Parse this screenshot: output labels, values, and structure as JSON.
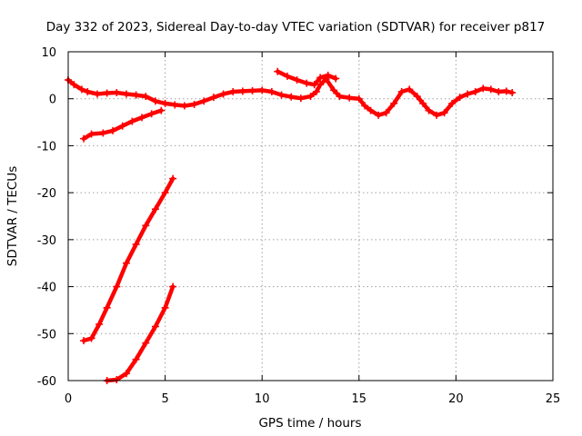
{
  "chart_data": {
    "type": "scatter",
    "title": "Day 332 of 2023, Sidereal Day-to-day VTEC variation (SDTVAR) for receiver p817",
    "xlabel": "GPS time / hours",
    "ylabel": "SDTVAR / TECUs",
    "xlim": [
      0,
      25
    ],
    "ylim": [
      -60,
      10
    ],
    "xticks": [
      0,
      5,
      10,
      15,
      20,
      25
    ],
    "yticks": [
      10,
      0,
      -10,
      -20,
      -30,
      -40,
      -50,
      -60
    ],
    "grid": true,
    "color": "#ff0000",
    "series": [
      {
        "name": "main-track",
        "x": [
          0.0,
          0.3,
          0.7,
          1.0,
          1.5,
          2.0,
          2.5,
          3.0,
          3.5,
          4.0,
          4.5,
          5.0,
          5.5,
          6.0,
          6.5,
          7.0,
          7.5,
          8.0,
          8.5,
          9.0,
          9.5,
          10.0,
          10.5,
          11.0,
          11.5,
          12.0,
          12.5,
          12.8,
          13.0,
          13.3,
          13.7,
          14.0,
          14.5,
          15.0,
          15.3,
          15.6,
          16.0,
          16.4,
          16.8,
          17.2,
          17.6,
          18.0,
          18.3,
          18.6,
          19.0,
          19.4,
          19.8,
          20.2,
          20.6,
          21.0,
          21.4,
          21.8,
          22.2,
          22.6,
          22.9
        ],
        "y": [
          4.0,
          3.0,
          2.0,
          1.5,
          1.0,
          1.2,
          1.3,
          1.0,
          0.8,
          0.5,
          -0.5,
          -1.0,
          -1.3,
          -1.5,
          -1.2,
          -0.5,
          0.3,
          1.0,
          1.5,
          1.6,
          1.7,
          1.8,
          1.5,
          0.8,
          0.4,
          0.1,
          0.5,
          1.5,
          3.0,
          4.2,
          1.8,
          0.5,
          0.2,
          0.0,
          -1.5,
          -2.5,
          -3.5,
          -3.0,
          -1.0,
          1.5,
          2.0,
          0.5,
          -1.0,
          -2.5,
          -3.5,
          -3.0,
          -1.0,
          0.3,
          1.0,
          1.5,
          2.2,
          2.0,
          1.5,
          1.6,
          1.3
        ]
      },
      {
        "name": "upper-segment",
        "x": [
          10.8,
          11.3,
          11.8,
          12.3,
          12.7,
          13.0,
          13.4,
          13.8
        ],
        "y": [
          5.8,
          4.8,
          4.0,
          3.3,
          3.0,
          4.5,
          5.0,
          4.3
        ]
      },
      {
        "name": "decline-segment",
        "x": [
          0.8,
          1.2,
          1.8,
          2.3,
          2.8,
          3.3,
          3.8,
          4.3,
          4.8
        ],
        "y": [
          -8.5,
          -7.5,
          -7.3,
          -6.8,
          -5.8,
          -4.8,
          -4.0,
          -3.2,
          -2.5
        ]
      },
      {
        "name": "steep-rise-1",
        "x": [
          0.8,
          1.2,
          1.6,
          2.0,
          2.5,
          3.0,
          3.5,
          4.0,
          4.5,
          5.0,
          5.4
        ],
        "y": [
          -51.5,
          -51.0,
          -48.0,
          -44.5,
          -40.0,
          -35.0,
          -31.0,
          -27.0,
          -23.5,
          -20.0,
          -17.0
        ]
      },
      {
        "name": "steep-rise-2",
        "x": [
          2.0,
          2.5,
          3.0,
          3.5,
          4.0,
          4.5,
          5.0,
          5.4
        ],
        "y": [
          -60.0,
          -59.8,
          -58.5,
          -55.5,
          -52.0,
          -48.5,
          -44.5,
          -40.0
        ]
      }
    ]
  }
}
